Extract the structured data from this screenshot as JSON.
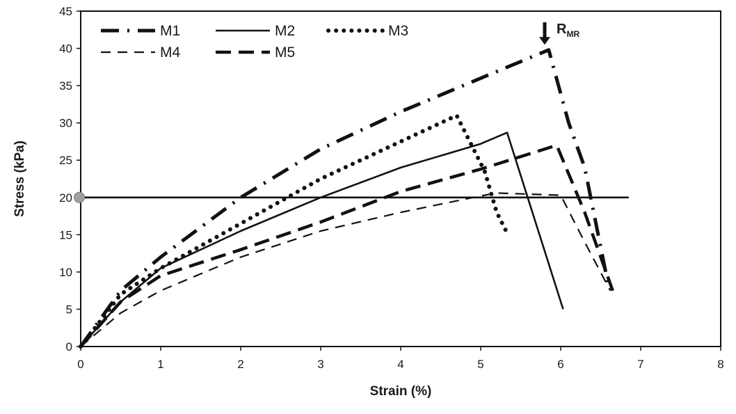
{
  "chart_data": {
    "type": "line",
    "title": "",
    "xlabel": "Strain (%)",
    "ylabel": "Stress (kPa)",
    "xlim": [
      0,
      8
    ],
    "ylim": [
      0,
      45
    ],
    "xticks": [
      0,
      1,
      2,
      3,
      4,
      5,
      6,
      7,
      8
    ],
    "yticks": [
      0,
      5,
      10,
      15,
      20,
      25,
      30,
      35,
      40,
      45
    ],
    "grid": false,
    "legend_position": "top-left",
    "series": [
      {
        "name": "M1",
        "style": "dash-dot",
        "color": "#111111",
        "points": [
          [
            0,
            0
          ],
          [
            0.5,
            7.5
          ],
          [
            1,
            12
          ],
          [
            2,
            20
          ],
          [
            3,
            26.5
          ],
          [
            4,
            31.5
          ],
          [
            5,
            36
          ],
          [
            5.85,
            39.8
          ],
          [
            6.1,
            30
          ],
          [
            6.3,
            24
          ],
          [
            6.6,
            8
          ]
        ]
      },
      {
        "name": "M2",
        "style": "solid",
        "color": "#111111",
        "points": [
          [
            0,
            0
          ],
          [
            0.5,
            6
          ],
          [
            1,
            10.5
          ],
          [
            2,
            15.5
          ],
          [
            3,
            20
          ],
          [
            4,
            24
          ],
          [
            5,
            27.2
          ],
          [
            5.33,
            28.7
          ],
          [
            6.03,
            5
          ]
        ]
      },
      {
        "name": "M3",
        "style": "dotted",
        "color": "#111111",
        "points": [
          [
            0,
            0
          ],
          [
            0.5,
            7
          ],
          [
            1,
            10.5
          ],
          [
            2,
            16.5
          ],
          [
            3,
            22.5
          ],
          [
            4,
            27.5
          ],
          [
            4.6,
            30.5
          ],
          [
            4.7,
            31
          ],
          [
            5.05,
            23.5
          ],
          [
            5.2,
            18
          ],
          [
            5.35,
            14.8
          ]
        ]
      },
      {
        "name": "M4",
        "style": "dashed",
        "color": "#111111",
        "points": [
          [
            0,
            0
          ],
          [
            0.5,
            4.5
          ],
          [
            1,
            7.5
          ],
          [
            2,
            12
          ],
          [
            3,
            15.5
          ],
          [
            4,
            18
          ],
          [
            5,
            20.2
          ],
          [
            5.2,
            20.6
          ],
          [
            6,
            20.3
          ],
          [
            6.3,
            14
          ],
          [
            6.62,
            7.5
          ]
        ]
      },
      {
        "name": "M5",
        "style": "long-dash",
        "color": "#111111",
        "points": [
          [
            0,
            0
          ],
          [
            0.5,
            6
          ],
          [
            1,
            9.5
          ],
          [
            2,
            13
          ],
          [
            3,
            16.7
          ],
          [
            4,
            20.8
          ],
          [
            5,
            23.8
          ],
          [
            5.95,
            27
          ],
          [
            6.3,
            18
          ],
          [
            6.65,
            7.5
          ]
        ]
      }
    ],
    "reference_line": {
      "y": 20,
      "x_range": [
        0,
        6.85
      ],
      "marker": "circle",
      "marker_color": "#a0a0a0"
    },
    "annotation": {
      "text": "R",
      "subscript": "MR",
      "arrow": "down",
      "at_x": 5.8,
      "arrow_top_y": 43.5,
      "arrow_bottom_y": 40.5
    }
  }
}
